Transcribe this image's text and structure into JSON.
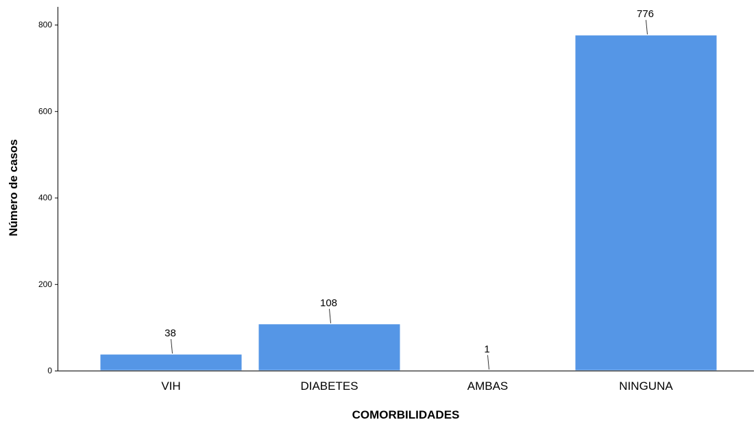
{
  "chart_data": {
    "type": "bar",
    "title": "",
    "xlabel": "COMORBILIDADES",
    "ylabel": "Número de casos",
    "categories": [
      "VIH",
      "DIABETES",
      "AMBAS",
      "NINGUNA"
    ],
    "values": [
      38,
      108,
      1,
      776
    ],
    "data_labels": [
      "38",
      "108",
      "1",
      "776"
    ],
    "ylim": [
      0,
      840
    ],
    "yticks": [
      0,
      200,
      400,
      600,
      800
    ],
    "ytick_labels": [
      "0",
      "200",
      "400",
      "600",
      "800"
    ],
    "grid": false,
    "legend": "none",
    "bar_color": "#5596e6",
    "bar_edge_color": "#ffffff"
  }
}
